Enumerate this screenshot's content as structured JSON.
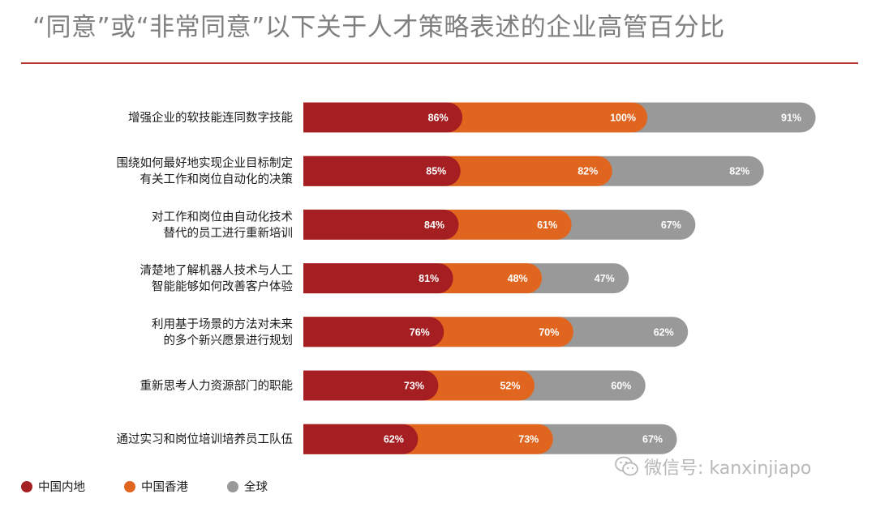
{
  "title": "“同意”或“非常同意”以下关于人才策略表述的企业高管百分比",
  "watermark": "微信号: kanxinjiapo",
  "chart_data": {
    "type": "bar",
    "stacked": true,
    "orientation": "horizontal",
    "categories": [
      [
        "增强企业的软技能连同数字技能"
      ],
      [
        "围绕如何最好地实现企业目标制定",
        "有关工作和岗位自动化的决策"
      ],
      [
        "对工作和岗位由自动化技术",
        "替代的员工进行重新培训"
      ],
      [
        "清楚地了解机器人技术与人工",
        "智能能够如何改善客户体验"
      ],
      [
        "利用基于场景的方法对未来",
        "的多个新兴愿景进行规划"
      ],
      [
        "重新思考人力资源部门的职能"
      ],
      [
        "通过实习和岗位培训培养员工队伍"
      ]
    ],
    "series": [
      {
        "name": "中国内地",
        "color": "#a51e22",
        "values": [
          86,
          85,
          84,
          81,
          76,
          73,
          62
        ]
      },
      {
        "name": "中国香港",
        "color": "#e0661f",
        "values": [
          100,
          82,
          61,
          48,
          70,
          52,
          73
        ]
      },
      {
        "name": "全球",
        "color": "#999999",
        "values": [
          91,
          82,
          67,
          47,
          62,
          60,
          67
        ]
      }
    ],
    "value_suffix": "%",
    "legend_position": "bottom-left",
    "grid": false
  }
}
